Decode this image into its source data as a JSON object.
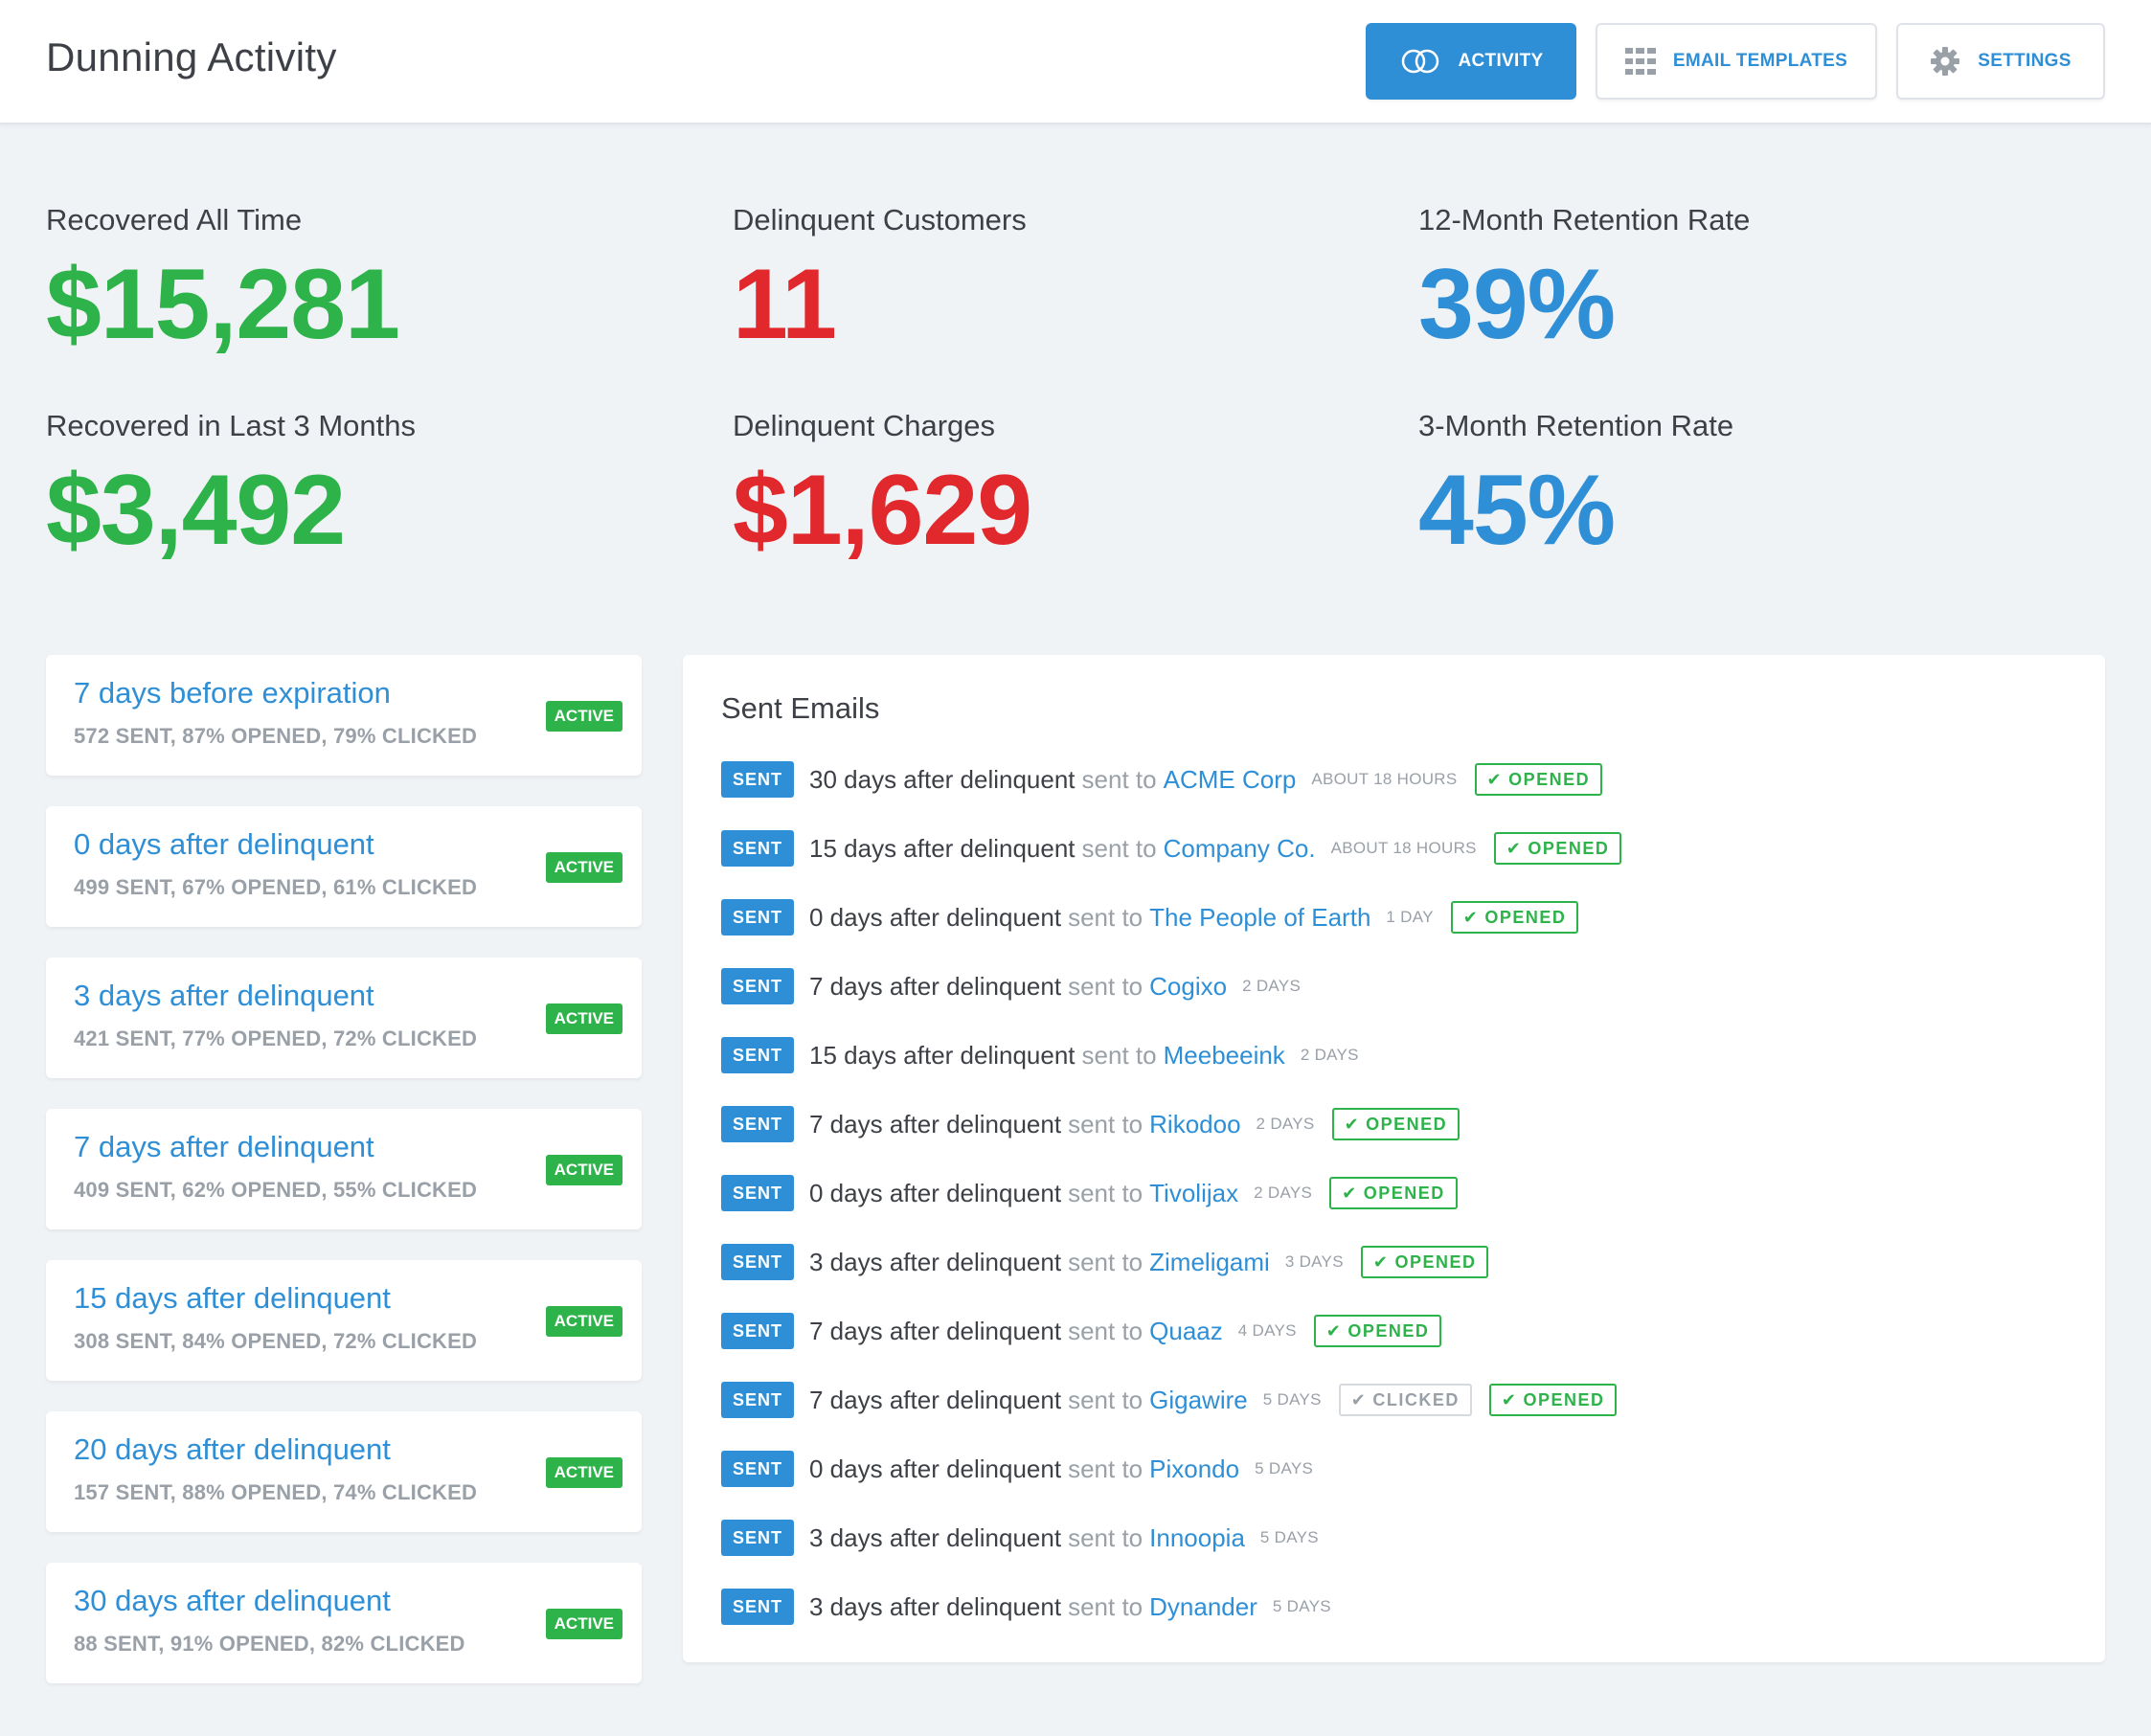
{
  "header": {
    "title": "Dunning Activity",
    "nav": [
      {
        "label": "Activity",
        "icon": "activity-rings-icon",
        "active": true
      },
      {
        "label": "Email Templates",
        "icon": "grid-icon",
        "active": false
      },
      {
        "label": "Settings",
        "icon": "gear-icon",
        "active": false
      }
    ]
  },
  "stats": {
    "recovered_all_time": {
      "label": "Recovered All Time",
      "value": "$15,281"
    },
    "delinquent_customers": {
      "label": "Delinquent Customers",
      "value": "11"
    },
    "retention_12": {
      "label": "12-Month Retention Rate",
      "value": "39%"
    },
    "recovered_3m": {
      "label": "Recovered in Last 3 Months",
      "value": "$3,492"
    },
    "delinquent_charges": {
      "label": "Delinquent Charges",
      "value": "$1,629"
    },
    "retention_3": {
      "label": "3-Month Retention Rate",
      "value": "45%"
    }
  },
  "colors": {
    "green": "#2db34a",
    "red": "#e0282d",
    "blue": "#2f8fd6"
  },
  "rules": [
    {
      "title": "7 days before expiration",
      "stats": "572 SENT, 87% OPENED, 79% CLICKED",
      "badge": "ACTIVE"
    },
    {
      "title": "0 days after delinquent",
      "stats": "499 SENT, 67% OPENED, 61% CLICKED",
      "badge": "ACTIVE"
    },
    {
      "title": "3 days after delinquent",
      "stats": "421 SENT, 77% OPENED, 72% CLICKED",
      "badge": "ACTIVE"
    },
    {
      "title": "7 days after delinquent",
      "stats": "409 SENT, 62% OPENED, 55% CLICKED",
      "badge": "ACTIVE"
    },
    {
      "title": "15 days after delinquent",
      "stats": "308 SENT, 84% OPENED, 72% CLICKED",
      "badge": "ACTIVE"
    },
    {
      "title": "20 days after delinquent",
      "stats": "157 SENT, 88% OPENED, 74% CLICKED",
      "badge": "ACTIVE"
    },
    {
      "title": "30 days after delinquent",
      "stats": "88 SENT, 91% OPENED, 82% CLICKED",
      "badge": "ACTIVE"
    }
  ],
  "sent_emails": {
    "title": "Sent Emails",
    "sent_label": "SENT",
    "sent_to_label": "sent to",
    "items": [
      {
        "template": "30 days after delinquent",
        "company": "ACME Corp",
        "time": "ABOUT 18 HOURS",
        "statuses": [
          {
            "label": "OPENED",
            "type": "opened"
          }
        ]
      },
      {
        "template": "15 days after delinquent",
        "company": "Company Co.",
        "time": "ABOUT 18 HOURS",
        "statuses": [
          {
            "label": "OPENED",
            "type": "opened"
          }
        ]
      },
      {
        "template": "0 days after delinquent",
        "company": "The People of Earth",
        "time": "1 DAY",
        "statuses": [
          {
            "label": "OPENED",
            "type": "opened"
          }
        ]
      },
      {
        "template": "7 days after delinquent",
        "company": "Cogixo",
        "time": "2 DAYS",
        "statuses": []
      },
      {
        "template": "15 days after delinquent",
        "company": "Meebeeink",
        "time": "2 DAYS",
        "statuses": []
      },
      {
        "template": "7 days after delinquent",
        "company": "Rikodoo",
        "time": "2 DAYS",
        "statuses": [
          {
            "label": "OPENED",
            "type": "opened"
          }
        ]
      },
      {
        "template": "0 days after delinquent",
        "company": "Tivolijax",
        "time": "2 DAYS",
        "statuses": [
          {
            "label": "OPENED",
            "type": "opened"
          }
        ]
      },
      {
        "template": "3 days after delinquent",
        "company": "Zimeligami",
        "time": "3 DAYS",
        "statuses": [
          {
            "label": "OPENED",
            "type": "opened"
          }
        ]
      },
      {
        "template": "7 days after delinquent",
        "company": "Quaaz",
        "time": "4 DAYS",
        "statuses": [
          {
            "label": "OPENED",
            "type": "opened"
          }
        ]
      },
      {
        "template": "7 days after delinquent",
        "company": "Gigawire",
        "time": "5 DAYS",
        "statuses": [
          {
            "label": "CLICKED",
            "type": "clicked"
          },
          {
            "label": "OPENED",
            "type": "opened"
          }
        ]
      },
      {
        "template": "0 days after delinquent",
        "company": "Pixondo",
        "time": "5 DAYS",
        "statuses": []
      },
      {
        "template": "3 days after delinquent",
        "company": "Innoopia",
        "time": "5 DAYS",
        "statuses": []
      },
      {
        "template": "3 days after delinquent",
        "company": "Dynander",
        "time": "5 DAYS",
        "statuses": []
      }
    ]
  }
}
